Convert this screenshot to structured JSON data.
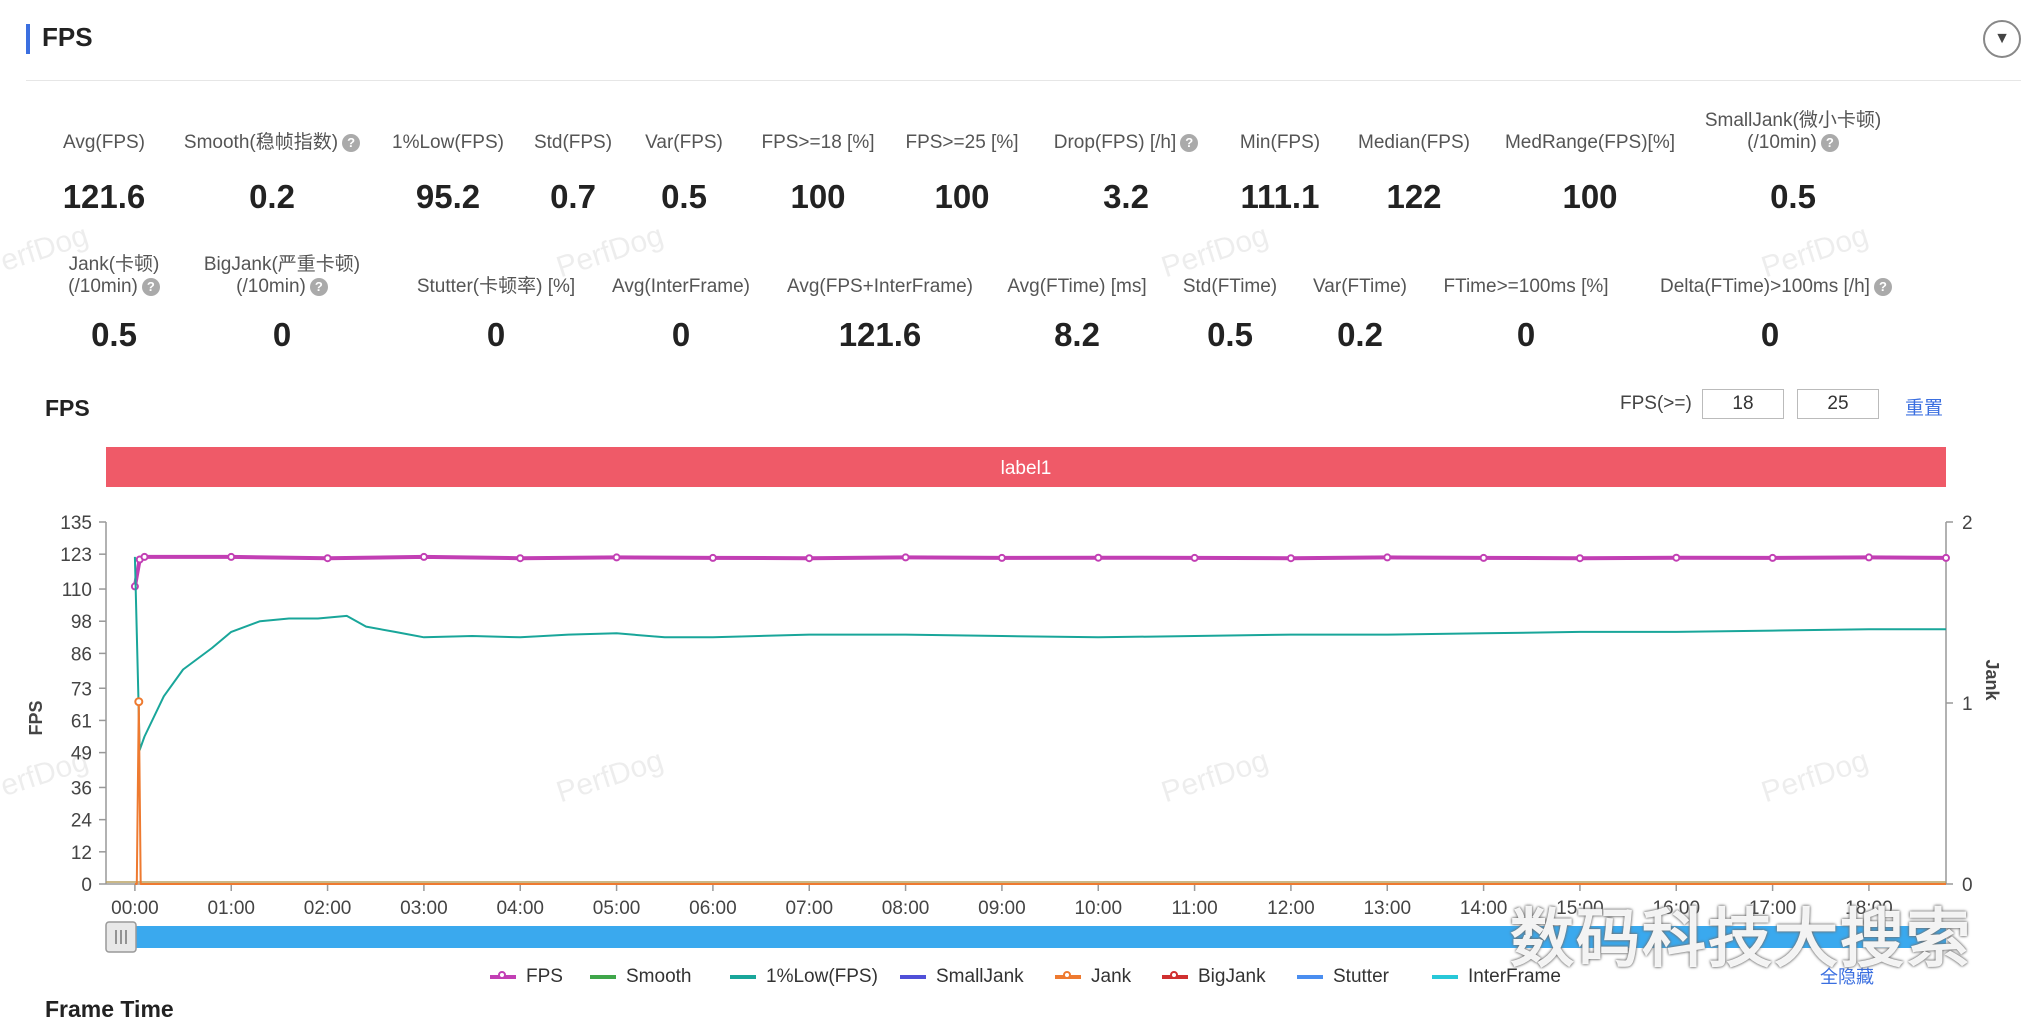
{
  "header": {
    "title": "FPS"
  },
  "metrics_row1": [
    {
      "label": "Avg(FPS)",
      "value": "121.6",
      "help": false
    },
    {
      "label": "Smooth(稳帧指数)",
      "value": "0.2",
      "help": true
    },
    {
      "label": "1%Low(FPS)",
      "value": "95.2",
      "help": false
    },
    {
      "label": "Std(FPS)",
      "value": "0.7",
      "help": false
    },
    {
      "label": "Var(FPS)",
      "value": "0.5",
      "help": false
    },
    {
      "label": "FPS>=18 [%]",
      "value": "100",
      "help": false
    },
    {
      "label": "FPS>=25 [%]",
      "value": "100",
      "help": false
    },
    {
      "label": "Drop(FPS) [/h]",
      "value": "3.2",
      "help": true
    },
    {
      "label": "Min(FPS)",
      "value": "111.1",
      "help": false
    },
    {
      "label": "Median(FPS)",
      "value": "122",
      "help": false
    },
    {
      "label": "MedRange(FPS)[%]",
      "value": "100",
      "help": false
    },
    {
      "label": "SmallJank(微小卡顿)",
      "label2": "(/10min)",
      "value": "0.5",
      "help": true
    }
  ],
  "metrics_row2": [
    {
      "label": "Jank(卡顿)",
      "label2": "(/10min)",
      "value": "0.5",
      "help": true
    },
    {
      "label": "BigJank(严重卡顿)",
      "label2": "(/10min)",
      "value": "0",
      "help": true
    },
    {
      "label": "Stutter(卡顿率) [%]",
      "value": "0",
      "help": false
    },
    {
      "label": "Avg(InterFrame)",
      "value": "0",
      "help": false
    },
    {
      "label": "Avg(FPS+InterFrame)",
      "value": "121.6",
      "help": false
    },
    {
      "label": "Avg(FTime) [ms]",
      "value": "8.2",
      "help": false
    },
    {
      "label": "Std(FTime)",
      "value": "0.5",
      "help": false
    },
    {
      "label": "Var(FTime)",
      "value": "0.2",
      "help": false
    },
    {
      "label": "FTime>=100ms [%]",
      "value": "0",
      "help": false
    },
    {
      "label": "Delta(FTime)>100ms [/h]",
      "value": "0",
      "help": true
    }
  ],
  "fps_chart": {
    "title": "FPS",
    "threshold_label": "FPS(>=)",
    "threshold_1": "18",
    "threshold_2": "25",
    "reset_label": "重置",
    "hide_all_label": "全隐藏"
  },
  "watermark": "PerfDog",
  "overlay_text": "数码科技大搜索",
  "bottom_title": "Frame Time",
  "colors": {
    "fps": "#c23fb4",
    "smooth": "#3fa64a",
    "low1": "#19a69a",
    "smalljank": "#5050d8",
    "jank": "#ee7a30",
    "bigjank": "#d03030",
    "stutter": "#4a8ef0",
    "interframe": "#28c8d8",
    "label_bar": "#ef5a68",
    "slider": "#3aa9ee"
  },
  "chart_data": {
    "type": "line",
    "label_band": "label1",
    "xlabel": "",
    "ylabel": "FPS",
    "y2label": "Jank",
    "ylim": [
      0,
      135
    ],
    "y_ticks": [
      0,
      12,
      24,
      36,
      49,
      61,
      73,
      86,
      98,
      110,
      123,
      135
    ],
    "y2lim": [
      0,
      2
    ],
    "y2_ticks": [
      0,
      1,
      2
    ],
    "x_ticks": [
      "00:00",
      "01:00",
      "02:00",
      "03:00",
      "04:00",
      "05:00",
      "06:00",
      "07:00",
      "08:00",
      "09:00",
      "10:00",
      "11:00",
      "12:00",
      "13:00",
      "14:00",
      "15:00",
      "16:00",
      "17:00",
      "18:00"
    ],
    "x_unit": "minutes",
    "x_range": [
      -0.3,
      18.8
    ],
    "legend": [
      "FPS",
      "Smooth",
      "1%Low(FPS)",
      "SmallJank",
      "Jank",
      "BigJank",
      "Stutter",
      "InterFrame"
    ],
    "series": [
      {
        "name": "FPS",
        "color": "#c23fb4",
        "x": [
          0,
          0.05,
          0.1,
          1.0,
          2.0,
          3.0,
          4.0,
          5.0,
          6.0,
          7.0,
          8.0,
          9.0,
          10.0,
          11.0,
          12.0,
          13.0,
          14.0,
          15.0,
          16.0,
          17.0,
          18.0,
          18.8
        ],
        "y": [
          111,
          121,
          122,
          122,
          121.5,
          122,
          121.5,
          121.8,
          121.6,
          121.5,
          121.8,
          121.6,
          121.7,
          121.6,
          121.5,
          121.8,
          121.6,
          121.5,
          121.7,
          121.6,
          121.8,
          121.6
        ]
      },
      {
        "name": "1%Low(FPS)",
        "color": "#19a69a",
        "x": [
          0,
          0.05,
          0.1,
          0.3,
          0.5,
          0.8,
          1.0,
          1.3,
          1.6,
          1.9,
          2.2,
          2.4,
          2.7,
          3.0,
          3.5,
          4.0,
          4.5,
          5.0,
          5.5,
          6.0,
          7.0,
          8.0,
          9.0,
          10.0,
          11.0,
          12.0,
          13.0,
          14.0,
          15.0,
          16.0,
          17.0,
          18.0,
          18.8
        ],
        "y": [
          122,
          50,
          55,
          70,
          80,
          88,
          94,
          98,
          99,
          99,
          100,
          96,
          94,
          92,
          92.5,
          92,
          93,
          93.5,
          92,
          92,
          93,
          93,
          92.5,
          92,
          92.5,
          93,
          93,
          93.5,
          94,
          94,
          94.5,
          95,
          95
        ]
      },
      {
        "name": "Jank",
        "color": "#ee7a30",
        "x": [
          0,
          0.02,
          0.04,
          0.06,
          0.1,
          18.8
        ],
        "y": [
          0,
          0,
          68,
          0,
          0,
          0
        ]
      }
    ]
  }
}
